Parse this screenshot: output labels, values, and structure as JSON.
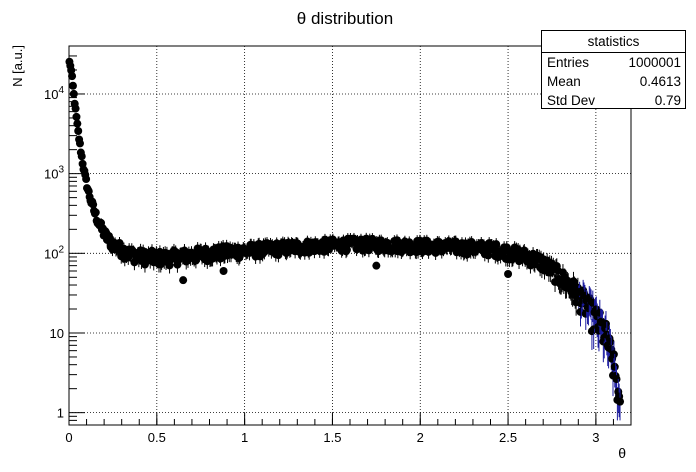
{
  "chart_data": {
    "type": "scatter",
    "title": "θ distribution",
    "xlabel": "θ",
    "ylabel": "N [a.u.]",
    "xlim": [
      0,
      3.2
    ],
    "ylim": [
      0.7,
      40000
    ],
    "yscale": "log",
    "grid": true,
    "x_ticks": [
      "0",
      "0.5",
      "1",
      "1.5",
      "2",
      "2.5",
      "3"
    ],
    "y_ticks": [
      "1",
      "10",
      "10^2",
      "10^3",
      "10^4"
    ],
    "marker_color": "#000000",
    "line_color": "#1a1aa0",
    "x": [
      0.005,
      0.015,
      0.025,
      0.035,
      0.045,
      0.055,
      0.065,
      0.075,
      0.085,
      0.095,
      0.11,
      0.13,
      0.15,
      0.17,
      0.19,
      0.21,
      0.23,
      0.25,
      0.28,
      0.31,
      0.34,
      0.37,
      0.4,
      0.45,
      0.5,
      0.55,
      0.6,
      0.65,
      0.7,
      0.8,
      0.9,
      1.0,
      1.1,
      1.2,
      1.3,
      1.4,
      1.5,
      1.6,
      1.7,
      1.8,
      1.9,
      2.0,
      2.1,
      2.2,
      2.3,
      2.4,
      2.45,
      2.5,
      2.55,
      2.6,
      2.65,
      2.7,
      2.75,
      2.8,
      2.85,
      2.9,
      2.95,
      3.0,
      3.03,
      3.06,
      3.08,
      3.1,
      3.12,
      3.135
    ],
    "y": [
      25000,
      18000,
      11000,
      7000,
      4500,
      3000,
      2100,
      1500,
      1100,
      850,
      600,
      420,
      310,
      240,
      195,
      165,
      145,
      130,
      118,
      108,
      100,
      96,
      92,
      90,
      88,
      88,
      90,
      92,
      95,
      100,
      104,
      108,
      112,
      116,
      120,
      124,
      127,
      130,
      130,
      128,
      126,
      124,
      122,
      120,
      118,
      114,
      110,
      104,
      98,
      92,
      85,
      75,
      62,
      50,
      40,
      30,
      22,
      15,
      12,
      9,
      6,
      4,
      2.5,
      1
    ],
    "outlier_x": [
      0.65,
      0.88,
      1.75,
      2.5
    ],
    "outlier_y": [
      46,
      60,
      70,
      55
    ]
  },
  "stats": {
    "title": "statistics",
    "rows": [
      {
        "label": "Entries",
        "value": "1000001"
      },
      {
        "label": "Mean",
        "value": "0.4613"
      },
      {
        "label": "Std Dev",
        "value": "0.79"
      }
    ]
  }
}
